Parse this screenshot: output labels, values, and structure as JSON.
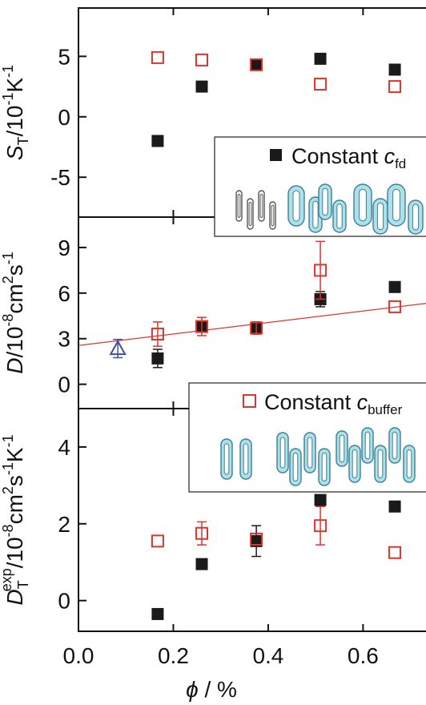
{
  "x_axis": {
    "label_symbol": "ϕ",
    "label_unit": " / %",
    "range": [
      0.0,
      0.78
    ],
    "ticks": [
      0.0,
      0.2,
      0.4,
      0.6
    ],
    "tick_labels": [
      "0.0",
      "0.2",
      "0.4",
      "0.6"
    ]
  },
  "legend": {
    "fd": {
      "text": "Constant ",
      "symbol": "c",
      "sub": "fd"
    },
    "buffer": {
      "text": "Constant ",
      "symbol": "c",
      "sub": "buffer"
    }
  },
  "colors": {
    "black": "#1a1a1a",
    "red": "#e0332b",
    "blue": "#3a4fa8",
    "rod_fill": "#aee0ea",
    "rod_stroke": "#3a7f95"
  },
  "chart_data": [
    {
      "type": "scatter",
      "ylabel": {
        "main": "S",
        "sub": "T",
        "rest": "/10",
        "sup1": "-1",
        "mid": "K",
        "sup2": "-1"
      },
      "ylim": [
        -8.3,
        9.0
      ],
      "yticks": [
        -5,
        0,
        5
      ],
      "ytick_labels": [
        "-5",
        "0",
        "5"
      ],
      "series": [
        {
          "name": "Constant c_fd",
          "marker": "filled-square",
          "color": "#1a1a1a",
          "x": [
            0.167,
            0.26,
            0.375,
            0.51,
            0.667
          ],
          "y": [
            -2.0,
            2.5,
            4.3,
            4.8,
            3.9
          ]
        },
        {
          "name": "Constant c_buffer",
          "marker": "open-square",
          "color": "#e0332b",
          "x": [
            0.167,
            0.26,
            0.375,
            0.51,
            0.667
          ],
          "y": [
            4.9,
            4.7,
            4.3,
            2.7,
            2.5
          ]
        }
      ]
    },
    {
      "type": "scatter",
      "ylabel": {
        "main": "D",
        "rest": "/10",
        "sup1": "-8",
        "mid": "cm",
        "sup2": "2",
        "tail": "s",
        "sup3": "-1"
      },
      "ylim": [
        -1.6,
        11.0
      ],
      "yticks": [
        0,
        3,
        6,
        9
      ],
      "ytick_labels": [
        "0",
        "3",
        "6",
        "9"
      ],
      "series": [
        {
          "name": "Constant c_fd",
          "marker": "filled-square",
          "color": "#1a1a1a",
          "x": [
            0.167,
            0.26,
            0.375,
            0.51,
            0.667
          ],
          "y": [
            1.7,
            3.8,
            3.7,
            5.6,
            6.4
          ],
          "err": [
            0.6,
            0.3,
            0.4,
            0.5,
            0.0
          ]
        },
        {
          "name": "Constant c_buffer",
          "marker": "open-square",
          "color": "#e0332b",
          "x": [
            0.167,
            0.26,
            0.375,
            0.51,
            0.667
          ],
          "y": [
            3.3,
            3.8,
            3.7,
            7.5,
            5.1
          ],
          "err": [
            0.8,
            0.6,
            0.4,
            1.9,
            0.0
          ]
        },
        {
          "name": "triangle",
          "marker": "open-triangle",
          "color": "#3a4fa8",
          "x": [
            0.083
          ],
          "y": [
            2.35
          ],
          "err": [
            0.6
          ]
        }
      ],
      "fit_line": {
        "color": "#e0332b",
        "x": [
          0.0,
          0.78
        ],
        "y": [
          2.55,
          5.5
        ]
      }
    },
    {
      "type": "scatter",
      "ylabel": {
        "main": "D",
        "sub": "T",
        "supmain": "exp",
        "rest": "/10",
        "sup1": "-8",
        "mid": "cm",
        "sup2": "2",
        "tail": "s",
        "sup3": "-1",
        "tail2": "K",
        "sup4": "-1"
      },
      "ylim": [
        -0.8,
        5.0
      ],
      "yticks": [
        0,
        2,
        4
      ],
      "ytick_labels": [
        "0",
        "2",
        "4"
      ],
      "series": [
        {
          "name": "Constant c_fd",
          "marker": "filled-square",
          "color": "#1a1a1a",
          "x": [
            0.167,
            0.26,
            0.375,
            0.51,
            0.667
          ],
          "y": [
            -0.35,
            0.95,
            1.55,
            2.62,
            2.45
          ],
          "err": [
            0.0,
            0.0,
            0.4,
            0.0,
            0.0
          ]
        },
        {
          "name": "Constant c_buffer",
          "marker": "open-square",
          "color": "#e0332b",
          "x": [
            0.167,
            0.26,
            0.375,
            0.51,
            0.667
          ],
          "y": [
            1.55,
            1.75,
            1.6,
            1.95,
            1.25
          ],
          "err": [
            0.0,
            0.3,
            0.0,
            0.5,
            0.0
          ]
        }
      ]
    }
  ]
}
